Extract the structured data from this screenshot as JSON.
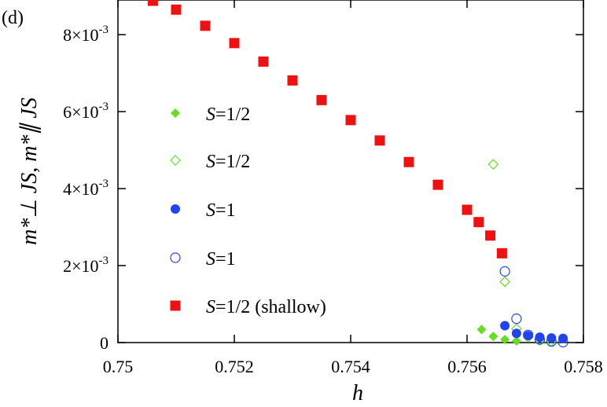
{
  "panel_label": "(d)",
  "chart_data": {
    "type": "scatter",
    "title": "",
    "xlabel": "h",
    "ylabel": "m*⊥ JS, m*∥ JS",
    "xlim": [
      0.75,
      0.758
    ],
    "ylim": [
      0,
      0.0089
    ],
    "grid": false,
    "legend_position": "center-left",
    "x_ticks": [
      {
        "value": 0.75,
        "label": "0.75"
      },
      {
        "value": 0.752,
        "label": "0.752"
      },
      {
        "value": 0.754,
        "label": "0.754"
      },
      {
        "value": 0.756,
        "label": "0.756"
      },
      {
        "value": 0.758,
        "label": "0.758"
      }
    ],
    "y_ticks": [
      {
        "value": 0,
        "label": "0"
      },
      {
        "value": 0.002,
        "label": "2×10-3",
        "mantissa": "2×10",
        "exponent": "-3"
      },
      {
        "value": 0.004,
        "label": "4×10-3",
        "mantissa": "4×10",
        "exponent": "-3"
      },
      {
        "value": 0.006,
        "label": "6×10-3",
        "mantissa": "6×10",
        "exponent": "-3"
      },
      {
        "value": 0.008,
        "label": "8×10-3",
        "mantissa": "8×10",
        "exponent": "-3"
      }
    ],
    "series": [
      {
        "name": "S=1/2",
        "label_italic": "S",
        "label_rest": "=1/2",
        "marker": "diamond",
        "filled": true,
        "color": "#66dd22",
        "points": [
          [
            0.75625,
            0.00034
          ],
          [
            0.75645,
            0.00016
          ],
          [
            0.75665,
            8e-05
          ],
          [
            0.75685,
            4e-05
          ]
        ]
      },
      {
        "name": "S=1/2",
        "label_italic": "S",
        "label_rest": "=1/2",
        "marker": "diamond",
        "filled": false,
        "color": "#66dd22",
        "points": [
          [
            0.75645,
            0.00463
          ],
          [
            0.75665,
            0.00158
          ],
          [
            0.75685,
            0.00036
          ],
          [
            0.75705,
            0.00014
          ],
          [
            0.75725,
            6e-05
          ],
          [
            0.75745,
            3e-05
          ]
        ]
      },
      {
        "name": "S=1",
        "label_italic": "S",
        "label_rest": "=1",
        "marker": "circle",
        "filled": true,
        "color": "#2244ee",
        "points": [
          [
            0.75665,
            0.00044
          ],
          [
            0.75685,
            0.00024
          ],
          [
            0.75705,
            0.00018
          ],
          [
            0.75725,
            0.00014
          ],
          [
            0.75745,
            0.00012
          ],
          [
            0.75765,
            0.00011
          ]
        ]
      },
      {
        "name": "S=1",
        "label_italic": "S",
        "label_rest": "=1",
        "marker": "circle",
        "filled": false,
        "color": "#2244ee",
        "points": [
          [
            0.75665,
            0.00185
          ],
          [
            0.75685,
            0.00062
          ],
          [
            0.75705,
            0.0002
          ],
          [
            0.75725,
            8e-05
          ],
          [
            0.75745,
            3e-05
          ],
          [
            0.75765,
            1e-05
          ]
        ]
      },
      {
        "name": "S=1/2 (shallow)",
        "label_italic": "S",
        "label_rest": "=1/2 (shallow)",
        "marker": "square",
        "filled": true,
        "color": "#ee1111",
        "points": [
          [
            0.7506,
            0.00888
          ],
          [
            0.751,
            0.00865
          ],
          [
            0.7515,
            0.00823
          ],
          [
            0.752,
            0.00778
          ],
          [
            0.7525,
            0.0073
          ],
          [
            0.753,
            0.00681
          ],
          [
            0.7535,
            0.0063
          ],
          [
            0.754,
            0.00578
          ],
          [
            0.7545,
            0.00525
          ],
          [
            0.755,
            0.00469
          ],
          [
            0.7555,
            0.0041
          ],
          [
            0.756,
            0.00345
          ],
          [
            0.7562,
            0.00313
          ],
          [
            0.7564,
            0.00278
          ],
          [
            0.7566,
            0.00232
          ]
        ]
      }
    ]
  }
}
